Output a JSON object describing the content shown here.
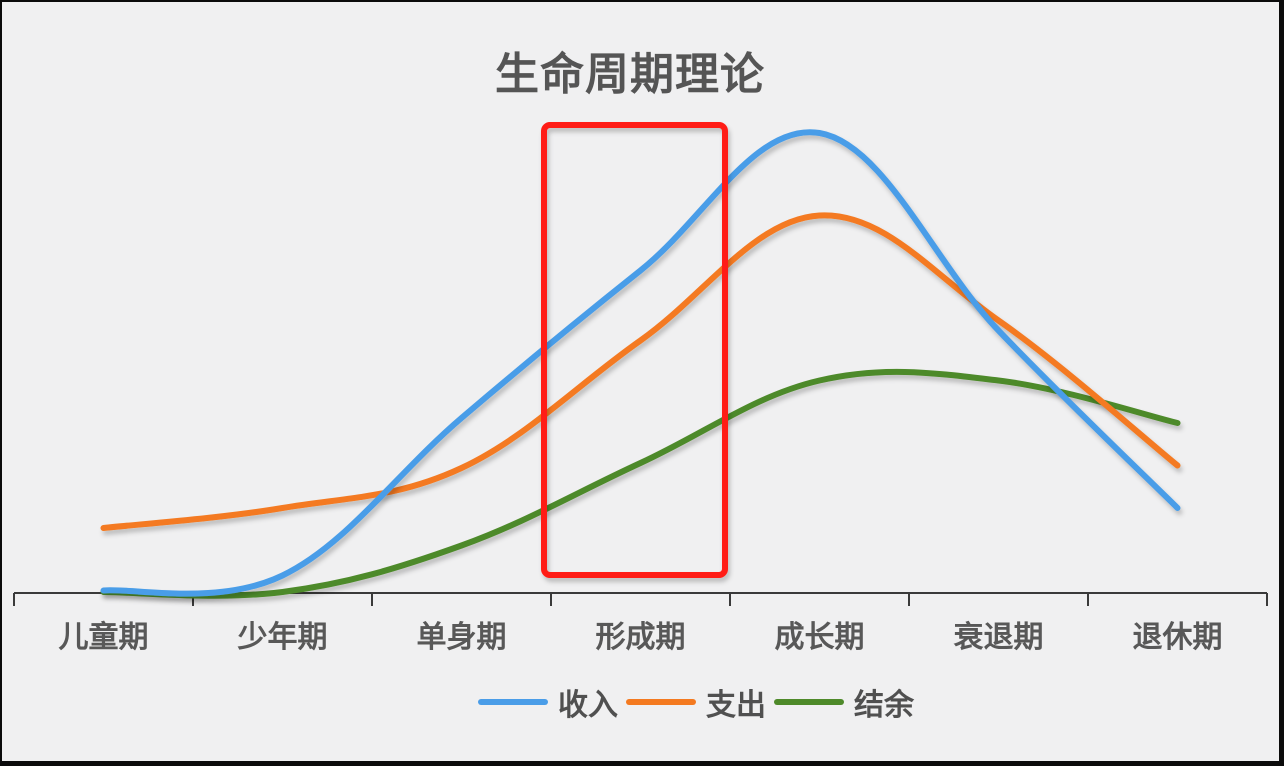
{
  "chart_data": {
    "type": "line",
    "title": "生命周期理论",
    "xlabel": "",
    "ylabel": "",
    "categories": [
      "儿童期",
      "少年期",
      "单身期",
      "形成期",
      "成长期",
      "衰退期",
      "退休期"
    ],
    "series": [
      {
        "name": "收入",
        "color": "#4a9de8",
        "values": [
          0.5,
          3.5,
          35,
          64.5,
          92,
          52.5,
          17
        ]
      },
      {
        "name": "支出",
        "color": "#f47a20",
        "values": [
          13,
          17,
          25,
          50.5,
          75.5,
          54.5,
          25.5
        ]
      },
      {
        "name": "结余",
        "color": "#4e8a2a",
        "values": [
          0.2,
          0.2,
          9.5,
          26,
          42.5,
          42.5,
          34
        ]
      }
    ],
    "ylim": [
      0,
      100
    ],
    "grid": false,
    "y_axis_visible": false,
    "smooth": true,
    "legend_position": "bottom",
    "annotation": {
      "type": "highlight-rectangle",
      "category": "形成期",
      "color": "#ff1a12"
    }
  },
  "chart": {
    "title": "生命周期理论",
    "categories": [
      "儿童期",
      "少年期",
      "单身期",
      "形成期",
      "成长期",
      "衰退期",
      "退休期"
    ],
    "legend": [
      {
        "label": "收入",
        "color": "#4a9de8"
      },
      {
        "label": "支出",
        "color": "#f47a20"
      },
      {
        "label": "结余",
        "color": "#4e8a2a"
      }
    ]
  }
}
